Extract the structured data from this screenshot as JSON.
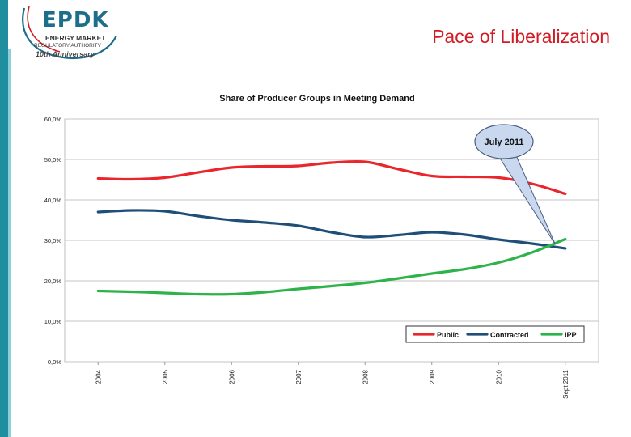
{
  "page": {
    "title": "Pace of Liberalization"
  },
  "logo": {
    "mark": "EPDK",
    "line1": "ENERGY MARKET",
    "line2": "REGULATORY AUTHORITY",
    "line3": "10th Anniversary"
  },
  "colors": {
    "accent": "#d01c24",
    "teal": "#1f8f9f",
    "public": "#e8262b",
    "contracted": "#1f4e79",
    "ipp": "#2db34a"
  },
  "chart_data": {
    "type": "line",
    "title": "Share of Producer Groups in Meeting Demand",
    "categories": [
      "2004",
      "2005",
      "2006",
      "2007",
      "2008",
      "2009",
      "2010",
      "Sept 2011"
    ],
    "ylim": [
      0,
      60
    ],
    "yticks": [
      "0,0%",
      "10,0%",
      "20,0%",
      "30,0%",
      "40,0%",
      "50,0%",
      "60,0%"
    ],
    "grid": true,
    "legend_position": "bottom-right",
    "series": [
      {
        "name": "Public",
        "color": "#e8262b",
        "x": [
          0,
          0.5,
          1,
          1.5,
          2,
          2.5,
          3,
          3.5,
          4,
          4.5,
          5,
          5.5,
          6,
          6.5,
          7
        ],
        "values": [
          45.3,
          45.1,
          45.5,
          46.8,
          48.0,
          48.3,
          48.4,
          49.2,
          49.4,
          47.6,
          45.9,
          45.7,
          45.5,
          44.0,
          41.5
        ]
      },
      {
        "name": "Contracted",
        "color": "#1f4e79",
        "x": [
          0,
          0.5,
          1,
          1.5,
          2,
          2.5,
          3,
          3.5,
          4,
          4.5,
          5,
          5.5,
          6,
          6.5,
          7
        ],
        "values": [
          37.0,
          37.4,
          37.2,
          36.0,
          35.0,
          34.4,
          33.6,
          32.0,
          30.8,
          31.3,
          32.0,
          31.4,
          30.2,
          29.2,
          28.0
        ]
      },
      {
        "name": "IPP",
        "color": "#2db34a",
        "x": [
          0,
          0.5,
          1,
          1.5,
          2,
          2.5,
          3,
          3.5,
          4,
          4.5,
          5,
          5.5,
          6,
          6.5,
          7
        ],
        "values": [
          17.5,
          17.3,
          17.0,
          16.7,
          16.7,
          17.2,
          18.0,
          18.7,
          19.5,
          20.6,
          21.8,
          22.9,
          24.5,
          27.0,
          30.3
        ]
      }
    ],
    "annotation": {
      "text": "July 2011",
      "points_to_x": 6.85,
      "points_to_y": 29.0
    }
  }
}
